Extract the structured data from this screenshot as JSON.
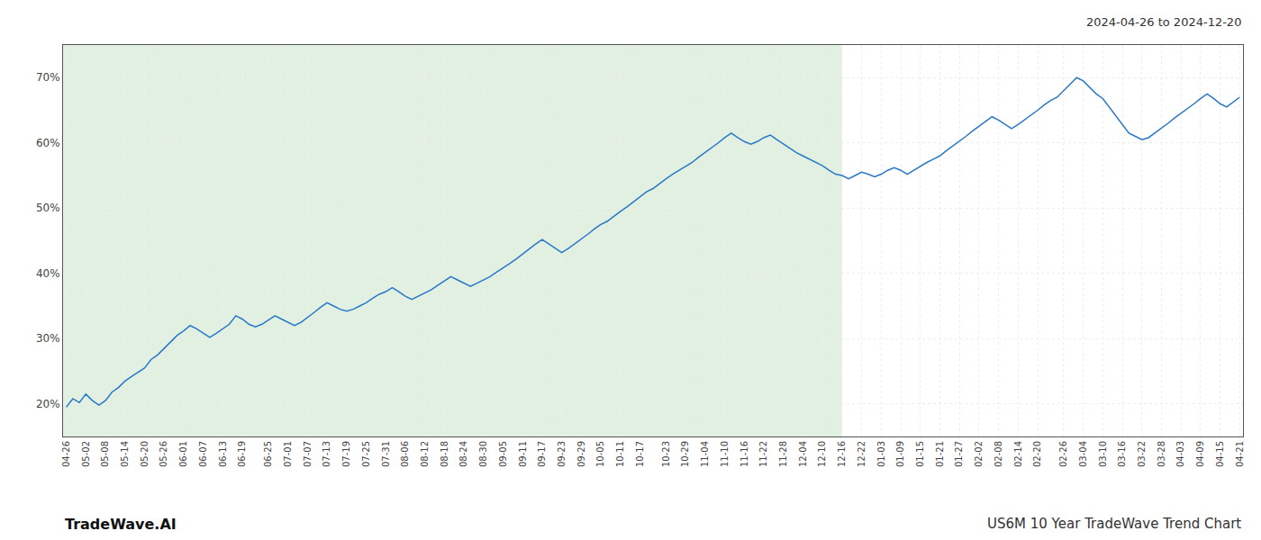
{
  "chart_data": {
    "type": "line",
    "title": "US6M 10 Year TradeWave Trend Chart",
    "subtitle": "2024-04-26 to 2024-12-20",
    "annotations": [
      "TradeWave.AI"
    ],
    "color": "#2878c8",
    "grid": true,
    "ylim": [
      15,
      75
    ],
    "yticks": [
      {
        "value": 20,
        "label": "20%"
      },
      {
        "value": 30,
        "label": "30%"
      },
      {
        "value": 40,
        "label": "40%"
      },
      {
        "value": 50,
        "label": "50%"
      },
      {
        "value": 60,
        "label": "60%"
      },
      {
        "value": 70,
        "label": "70%"
      }
    ],
    "shade": {
      "to": "12-16",
      "color": "#d4ead4"
    },
    "categories": [
      "04-26",
      null,
      null,
      "05-02",
      null,
      null,
      "05-08",
      null,
      null,
      "05-14",
      null,
      null,
      "05-20",
      null,
      null,
      "05-26",
      null,
      null,
      "06-01",
      null,
      null,
      "06-07",
      null,
      null,
      "06-13",
      null,
      null,
      "06-19",
      null,
      null,
      null,
      "06-25",
      null,
      null,
      "07-01",
      null,
      null,
      "07-07",
      null,
      null,
      "07-13",
      null,
      null,
      "07-19",
      null,
      null,
      "07-25",
      null,
      null,
      "07-31",
      null,
      null,
      "08-06",
      null,
      null,
      "08-12",
      null,
      null,
      "08-18",
      null,
      null,
      "08-24",
      null,
      null,
      "08-30",
      null,
      null,
      "09-05",
      null,
      null,
      "09-11",
      null,
      null,
      "09-17",
      null,
      null,
      "09-23",
      null,
      null,
      "09-29",
      null,
      null,
      "10-05",
      null,
      null,
      "10-11",
      null,
      null,
      "10-17",
      null,
      null,
      null,
      "10-23",
      null,
      null,
      "10-29",
      null,
      null,
      "11-04",
      null,
      null,
      "11-10",
      null,
      null,
      "11-16",
      null,
      null,
      "11-22",
      null,
      null,
      "11-28",
      null,
      null,
      "12-04",
      null,
      null,
      "12-10",
      null,
      null,
      "12-16",
      null,
      null,
      "12-22",
      null,
      null,
      "01-03",
      null,
      null,
      "01-09",
      null,
      null,
      "01-15",
      null,
      null,
      "01-21",
      null,
      null,
      "01-27",
      null,
      null,
      "02-02",
      null,
      null,
      "02-08",
      null,
      null,
      "02-14",
      null,
      null,
      "02-20",
      null,
      null,
      null,
      "02-26",
      null,
      null,
      "03-04",
      null,
      null,
      "03-10",
      null,
      null,
      "03-16",
      null,
      null,
      "03-22",
      null,
      null,
      "03-28",
      null,
      null,
      "04-03",
      null,
      null,
      "04-09",
      null,
      null,
      "04-15",
      null,
      null,
      "04-21"
    ],
    "values": [
      19.5,
      20.8,
      20.2,
      21.5,
      20.5,
      19.8,
      20.5,
      21.8,
      22.5,
      23.5,
      24.2,
      24.8,
      25.5,
      26.8,
      27.5,
      28.5,
      29.5,
      30.5,
      31.2,
      32.0,
      31.5,
      30.8,
      30.2,
      30.8,
      31.5,
      32.2,
      33.5,
      33.0,
      32.2,
      31.8,
      32.2,
      32.8,
      33.5,
      33.0,
      32.5,
      32.0,
      32.5,
      33.2,
      34.0,
      34.8,
      35.5,
      35.0,
      34.5,
      34.2,
      34.5,
      35.0,
      35.5,
      36.2,
      36.8,
      37.2,
      37.8,
      37.2,
      36.5,
      36.0,
      36.5,
      37.0,
      37.5,
      38.2,
      38.8,
      39.5,
      39.0,
      38.5,
      38.0,
      38.5,
      39.0,
      39.5,
      40.2,
      40.8,
      41.5,
      42.2,
      43.0,
      43.8,
      44.5,
      45.2,
      44.5,
      43.8,
      43.2,
      43.8,
      44.5,
      45.2,
      46.0,
      46.8,
      47.5,
      48.0,
      48.8,
      49.5,
      50.2,
      51.0,
      51.8,
      52.5,
      53.0,
      53.8,
      54.5,
      55.2,
      55.8,
      56.5,
      57.0,
      57.8,
      58.5,
      59.2,
      60.0,
      60.8,
      61.5,
      60.8,
      60.2,
      59.8,
      60.2,
      60.8,
      61.2,
      60.5,
      59.8,
      59.2,
      58.5,
      58.0,
      57.5,
      57.0,
      56.5,
      55.8,
      55.2,
      55.0,
      54.5,
      55.0,
      55.5,
      55.2,
      54.8,
      55.2,
      55.8,
      56.2,
      55.8,
      55.2,
      55.8,
      56.5,
      57.0,
      57.5,
      58.0,
      58.8,
      59.5,
      60.2,
      61.0,
      61.8,
      62.5,
      63.2,
      64.0,
      63.5,
      62.8,
      62.2,
      62.8,
      63.5,
      64.2,
      65.0,
      65.8,
      66.5,
      67.0,
      68.0,
      69.0,
      70.0,
      69.5,
      68.5,
      67.5,
      66.8,
      65.5,
      64.2,
      62.8,
      61.5,
      61.0,
      60.5,
      60.8,
      61.5,
      62.2,
      63.0,
      63.8,
      64.5,
      65.2,
      66.0,
      66.8,
      67.5,
      66.8,
      66.0,
      65.5,
      66.2,
      67.0
    ]
  }
}
